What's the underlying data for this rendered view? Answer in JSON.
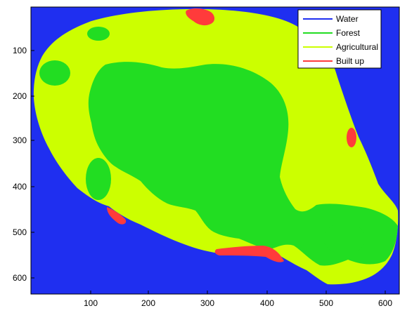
{
  "map": {
    "classes": [
      {
        "name": "Water",
        "color": "#1f2ff0"
      },
      {
        "name": "Forest",
        "color": "#22dd22"
      },
      {
        "name": "Agricultural",
        "color": "#ccff00"
      },
      {
        "name": "Built up",
        "color": "#ff3b3b"
      }
    ],
    "x_ticks": [
      "100",
      "200",
      "300",
      "400",
      "500",
      "600"
    ],
    "y_ticks": [
      "100",
      "200",
      "300",
      "400",
      "500",
      "600"
    ]
  }
}
